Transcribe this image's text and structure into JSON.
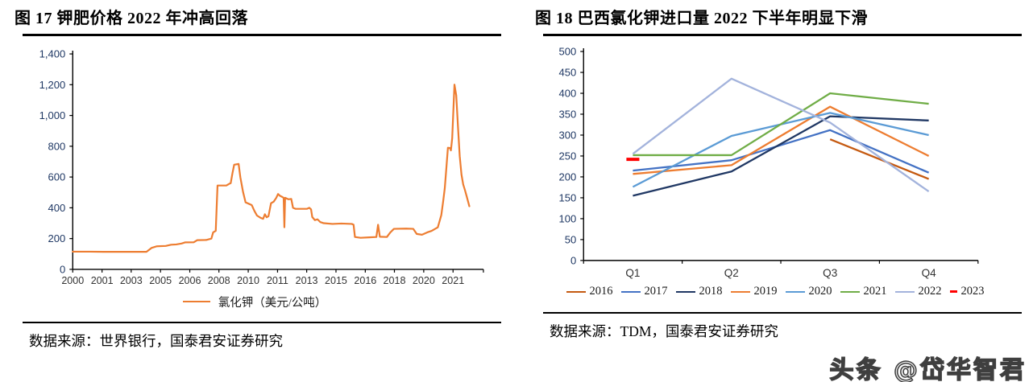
{
  "figures": [
    {
      "title": "图 17 钾肥价格 2022 年冲高回落",
      "legend_label": "氯化钾（美元/公吨）",
      "source_label": "数据来源：",
      "source_text": "世界银行，国泰君安证券研究"
    },
    {
      "title": "图 18 巴西氯化钾进口量 2022 下半年明显下滑",
      "source_label": "数据来源：",
      "source_text": "TDM，国泰君安证券研究"
    }
  ],
  "watermark": {
    "text": "头条 @岱华智君"
  },
  "colors": {
    "axis_line": "#000000",
    "y_label": "#1f3864",
    "x_label": "#333333",
    "potash_line": "#ED7D31"
  },
  "chart_data": [
    {
      "id": "potash-price-monthly",
      "type": "line",
      "title": "图 17 钾肥价格 2022 年冲高回落",
      "legend": [
        "氯化钾（美元/公吨）"
      ],
      "color": "#ED7D31",
      "ylabel": "",
      "ylim": [
        0,
        1400
      ],
      "y_step": 200,
      "x_range": [
        2000,
        2023.4
      ],
      "x_ticks": [
        {
          "t": 2000.0,
          "label": "2000"
        },
        {
          "t": 2001.67,
          "label": "2001"
        },
        {
          "t": 2003.33,
          "label": "2003"
        },
        {
          "t": 2005.0,
          "label": "2005"
        },
        {
          "t": 2006.67,
          "label": "2006"
        },
        {
          "t": 2008.33,
          "label": "2008"
        },
        {
          "t": 2010.0,
          "label": "2010"
        },
        {
          "t": 2011.67,
          "label": "2011"
        },
        {
          "t": 2013.33,
          "label": "2013"
        },
        {
          "t": 2015.0,
          "label": "2015"
        },
        {
          "t": 2016.67,
          "label": "2016"
        },
        {
          "t": 2018.33,
          "label": "2018"
        },
        {
          "t": 2020.0,
          "label": "2020"
        },
        {
          "t": 2021.67,
          "label": "2021"
        }
      ],
      "points": [
        [
          2000,
          115
        ],
        [
          2001,
          115
        ],
        [
          2002,
          114
        ],
        [
          2003,
          114
        ],
        [
          2004.2,
          114
        ],
        [
          2004.5,
          140
        ],
        [
          2004.8,
          150
        ],
        [
          2005.3,
          152
        ],
        [
          2005.6,
          160
        ],
        [
          2005.9,
          162
        ],
        [
          2006.2,
          168
        ],
        [
          2006.4,
          175
        ],
        [
          2006.9,
          176
        ],
        [
          2007.1,
          190
        ],
        [
          2007.6,
          191
        ],
        [
          2007.9,
          200
        ],
        [
          2008,
          240
        ],
        [
          2008.15,
          250
        ],
        [
          2008.25,
          545
        ],
        [
          2008.75,
          545
        ],
        [
          2008.9,
          555
        ],
        [
          2009,
          560
        ],
        [
          2009.1,
          625
        ],
        [
          2009.2,
          680
        ],
        [
          2009.45,
          685
        ],
        [
          2009.55,
          600
        ],
        [
          2009.7,
          505
        ],
        [
          2009.85,
          435
        ],
        [
          2010.05,
          425
        ],
        [
          2010.2,
          418
        ],
        [
          2010.35,
          380
        ],
        [
          2010.5,
          350
        ],
        [
          2010.7,
          335
        ],
        [
          2010.85,
          328
        ],
        [
          2010.95,
          358
        ],
        [
          2011.05,
          338
        ],
        [
          2011.15,
          345
        ],
        [
          2011.3,
          430
        ],
        [
          2011.45,
          440
        ],
        [
          2011.6,
          465
        ],
        [
          2011.7,
          490
        ],
        [
          2011.8,
          478
        ],
        [
          2011.95,
          470
        ],
        [
          2012.02,
          465
        ],
        [
          2012.06,
          273
        ],
        [
          2012.1,
          465
        ],
        [
          2012.3,
          455
        ],
        [
          2012.45,
          458
        ],
        [
          2012.55,
          400
        ],
        [
          2012.7,
          393
        ],
        [
          2013.35,
          393
        ],
        [
          2013.48,
          400
        ],
        [
          2013.58,
          390
        ],
        [
          2013.65,
          340
        ],
        [
          2013.8,
          320
        ],
        [
          2013.95,
          325
        ],
        [
          2014.1,
          308
        ],
        [
          2014.3,
          300
        ],
        [
          2014.8,
          295
        ],
        [
          2015.3,
          298
        ],
        [
          2015.9,
          295
        ],
        [
          2016,
          290
        ],
        [
          2016.08,
          210
        ],
        [
          2016.4,
          205
        ],
        [
          2016.9,
          208
        ],
        [
          2017.3,
          210
        ],
        [
          2017.4,
          290
        ],
        [
          2017.5,
          212
        ],
        [
          2017.9,
          210
        ],
        [
          2018.1,
          240
        ],
        [
          2018.3,
          263
        ],
        [
          2019,
          265
        ],
        [
          2019.4,
          263
        ],
        [
          2019.6,
          230
        ],
        [
          2019.9,
          225
        ],
        [
          2020.2,
          240
        ],
        [
          2020.45,
          250
        ],
        [
          2020.65,
          263
        ],
        [
          2020.8,
          273
        ],
        [
          2021,
          352
        ],
        [
          2021.1,
          437
        ],
        [
          2021.2,
          526
        ],
        [
          2021.3,
          673
        ],
        [
          2021.38,
          790
        ],
        [
          2021.5,
          788
        ],
        [
          2021.55,
          773
        ],
        [
          2021.62,
          852
        ],
        [
          2021.75,
          1200
        ],
        [
          2021.85,
          1131
        ],
        [
          2021.95,
          931
        ],
        [
          2022.05,
          736
        ],
        [
          2022.15,
          615
        ],
        [
          2022.25,
          552
        ],
        [
          2022.35,
          515
        ],
        [
          2022.45,
          473
        ],
        [
          2022.6,
          410
        ]
      ]
    },
    {
      "id": "brazil-kcl-imports-quarterly",
      "type": "line",
      "title": "图 18 巴西氯化钾进口量 2022 下半年明显下滑",
      "categories": [
        "Q1",
        "Q2",
        "Q3",
        "Q4"
      ],
      "ylim": [
        0,
        500
      ],
      "y_step": 50,
      "legend_position": "bottom",
      "series": [
        {
          "name": "2016",
          "color": "#C55A11",
          "values": [
            null,
            null,
            290,
            195
          ]
        },
        {
          "name": "2017",
          "color": "#4472C4",
          "values": [
            215,
            240,
            312,
            210
          ]
        },
        {
          "name": "2018",
          "color": "#203864",
          "values": [
            155,
            213,
            345,
            335
          ]
        },
        {
          "name": "2019",
          "color": "#ED7D31",
          "values": [
            207,
            228,
            368,
            250
          ]
        },
        {
          "name": "2020",
          "color": "#5B9BD5",
          "values": [
            176,
            298,
            353,
            300
          ]
        },
        {
          "name": "2021",
          "color": "#70AD47",
          "values": [
            252,
            252,
            400,
            375
          ]
        },
        {
          "name": "2022",
          "color": "#A3B3DC",
          "values": [
            255,
            435,
            330,
            165
          ]
        },
        {
          "name": "2023",
          "color": "#FF0000",
          "values": [
            242,
            null,
            null,
            null
          ],
          "marker": "dash"
        }
      ]
    }
  ]
}
